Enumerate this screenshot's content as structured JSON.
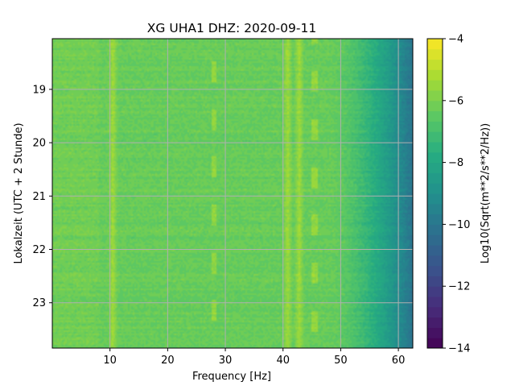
{
  "chart_data": {
    "type": "heatmap",
    "title": "XG UHA1  DHZ: 2020-09-11",
    "xlabel": "Frequency [Hz]",
    "ylabel": "Lokalzeit (UTC + 2 Stunde)",
    "xlim": [
      0,
      62.5
    ],
    "ylim": [
      18.05,
      23.85
    ],
    "y_inverted": true,
    "x_ticks": [
      10,
      20,
      30,
      40,
      50,
      60
    ],
    "y_ticks": [
      19,
      20,
      21,
      22,
      23
    ],
    "grid": true,
    "colormap": "viridis",
    "colorbar": {
      "label": "Log10(Sqrt(m**2/s**2/Hz))",
      "range": [
        -14,
        -4
      ],
      "ticks": [
        -4,
        -6,
        -8,
        -10,
        -12,
        -14
      ],
      "levels": 30
    },
    "features": {
      "spectral_lines_hz": [
        10.5,
        40.8,
        42.8
      ],
      "intermittent_lines_hz": [
        28.0,
        45.5
      ],
      "high_frequency_rolloff_hz": [
        48,
        62.5
      ],
      "background_level": -6.3
    }
  }
}
